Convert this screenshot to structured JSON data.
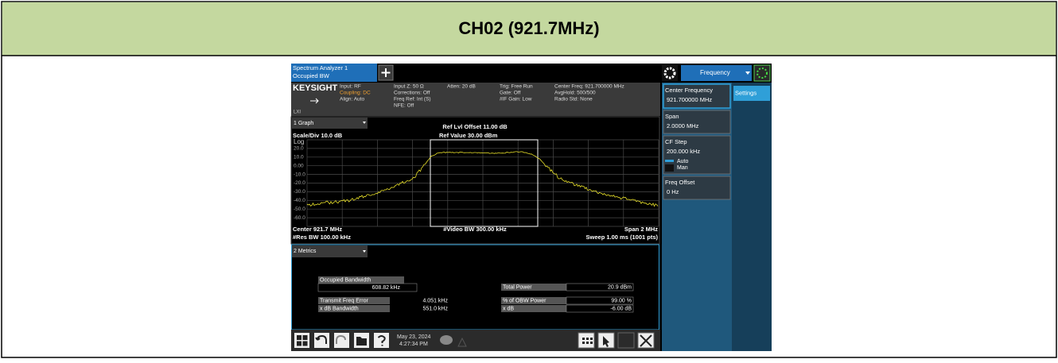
{
  "header": {
    "title": "CH02 (921.7MHz)"
  },
  "instrument": {
    "tab": [
      "Spectrum Analyzer 1",
      "Occupied BW"
    ],
    "menu": "Frequency",
    "logo": "KEYSIGHT",
    "logo_sub": "LXI",
    "status": [
      [
        "Input: RF",
        "Coupling: DC",
        "Align: Auto"
      ],
      [
        "Input Z: 50 Ω",
        "Corrections: Off",
        "Freq Ref: Int (S)",
        "NFE: Off"
      ],
      [
        "Atten: 20 dB"
      ],
      [
        "Trig: Free Run",
        "Gate: Off",
        "#IF Gain: Low"
      ],
      [
        "Center Freq: 921.700000 MHz",
        "AvgHold: 500/500",
        "Radio Std: None"
      ]
    ],
    "graph": {
      "window": "1 Graph",
      "ref_offset": "Ref Lvl Offset 11.00 dB",
      "ref_value": "Ref Value 30.00 dBm",
      "scale": "Scale/Div 10.0 dB",
      "scale_type": "Log",
      "y_labels": [
        "20.0",
        "10.0",
        "0.00",
        "-10.0",
        "-20.0",
        "-30.0",
        "-40.0",
        "-50.0",
        "-60.0"
      ],
      "center": "Center 921.7 MHz",
      "res_bw": "#Res BW 100.00 kHz",
      "video_bw": "#Video BW 300.00 kHz",
      "span": "Span 2 MHz",
      "sweep": "Sweep 1.00 ms (1001 pts)"
    },
    "metrics": {
      "window": "2 Metrics",
      "occupied_bw": {
        "label": "Occupied Bandwidth",
        "value": "608.82 kHz"
      },
      "rows": [
        [
          "Transmit Freq Error",
          "4.051 kHz"
        ],
        [
          "x dB Bandwidth",
          "551.0 kHz"
        ]
      ],
      "right": [
        [
          "Total Power",
          "20.9 dBm"
        ],
        [
          "% of OBW Power",
          "99.00 %"
        ],
        [
          "x dB",
          "-6.00 dB"
        ]
      ]
    },
    "softkeys": [
      {
        "label": "Center Frequency",
        "value": "921.700000 MHz"
      },
      {
        "label": "Span",
        "value": "2.0000 MHz"
      },
      {
        "label": "CF Step",
        "value": "200.000 kHz"
      },
      {
        "label": "Freq Offset",
        "value": "0 Hz"
      }
    ],
    "cf_step_modes": [
      "Auto",
      "Man"
    ],
    "settings": "Settings",
    "taskbar": {
      "date": "May 23, 2024",
      "time": "4:27:34 PM"
    }
  }
}
